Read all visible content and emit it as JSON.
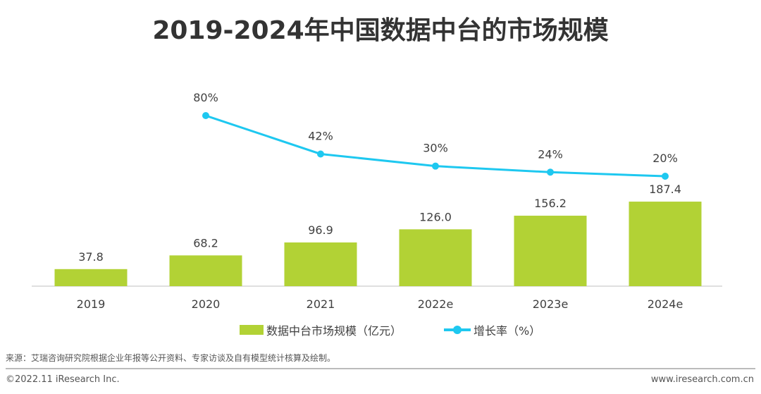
{
  "title": "2019-2024年中国数据中台的市场规模",
  "chart_data": {
    "type": "bar+line",
    "categories": [
      "2019",
      "2020",
      "2021",
      "2022e",
      "2023e",
      "2024e"
    ],
    "series": [
      {
        "name": "数据中台市场规模（亿元）",
        "type": "bar",
        "values": [
          37.8,
          68.2,
          96.9,
          126.0,
          156.2,
          187.4
        ],
        "labels": [
          "37.8",
          "68.2",
          "96.9",
          "126.0",
          "156.2",
          "187.4"
        ],
        "color": "#b2d235"
      },
      {
        "name": "增长率（%）",
        "type": "line",
        "values": [
          null,
          80,
          42,
          30,
          24,
          20
        ],
        "labels": [
          "",
          "80%",
          "42%",
          "30%",
          "24%",
          "20%"
        ],
        "color": "#1ec8f0"
      }
    ],
    "legend": "bottom"
  },
  "footer": {
    "source": "来源：艾瑞咨询研究院根据企业年报等公开资料、专家访谈及自有模型统计核算及绘制。",
    "copyright": "©2022.11 iResearch Inc.",
    "website": "www.iresearch.com.cn"
  }
}
